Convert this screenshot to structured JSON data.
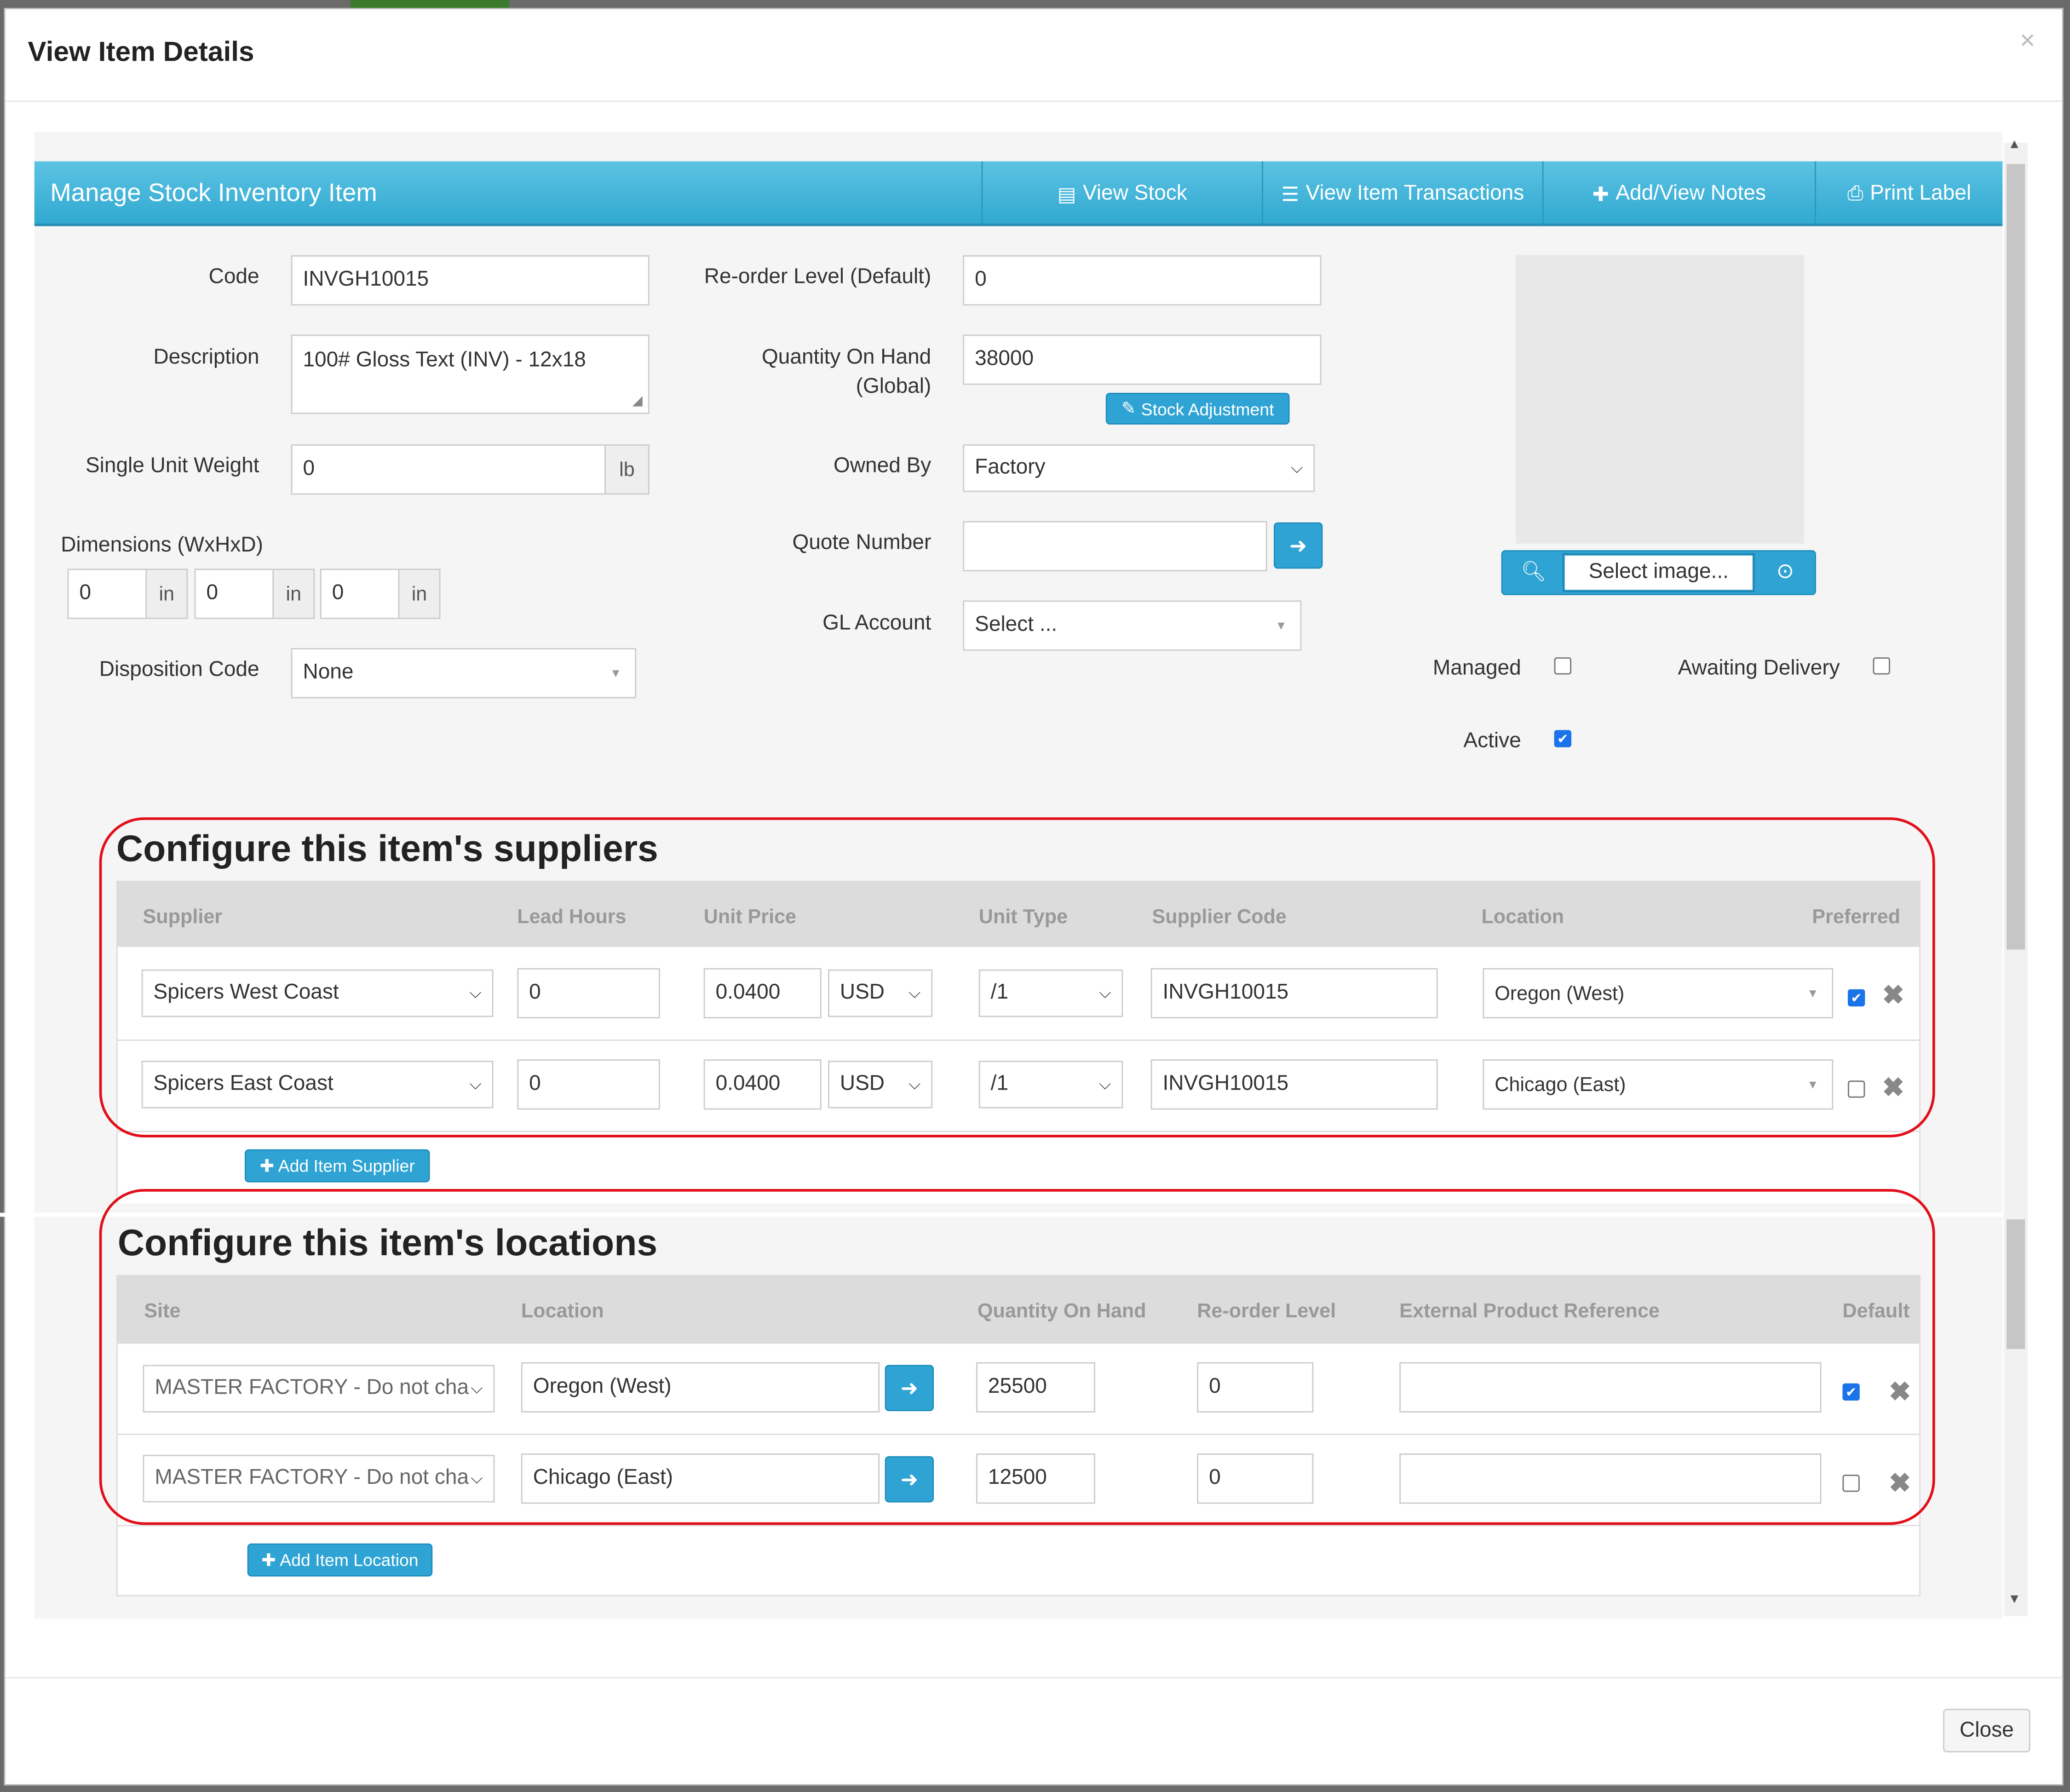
{
  "modal": {
    "title": "View Item Details",
    "close_x": "×",
    "close_button": "Close"
  },
  "panel": {
    "title": "Manage Stock Inventory Item",
    "buttons": [
      {
        "label": "View Stock",
        "icon": "document-icon"
      },
      {
        "label": "View Item Transactions",
        "icon": "list-icon"
      },
      {
        "label": "Add/View Notes",
        "icon": "plus-icon"
      },
      {
        "label": "Print Label",
        "icon": "printer-icon"
      }
    ]
  },
  "form": {
    "code": {
      "label": "Code",
      "value": "INVGH10015"
    },
    "description": {
      "label": "Description",
      "value": "100# Gloss Text (INV) - 12x18"
    },
    "weight": {
      "label": "Single Unit Weight",
      "value": "0",
      "unit": "lb"
    },
    "dimensions": {
      "label": "Dimensions (WxHxD)",
      "w": "0",
      "h": "0",
      "d": "0",
      "unit": "in"
    },
    "disposition": {
      "label": "Disposition Code",
      "value": "None"
    },
    "reorder": {
      "label": "Re-order Level (Default)",
      "value": "0"
    },
    "qoh": {
      "label_line1": "Quantity On Hand",
      "label_line2": "(Global)",
      "value": "38000",
      "adjust_label": "Stock Adjustment"
    },
    "owned_by": {
      "label": "Owned By",
      "value": "Factory"
    },
    "quote_number": {
      "label": "Quote Number",
      "value": ""
    },
    "gl_account": {
      "label": "GL Account",
      "value": "Select ..."
    },
    "image": {
      "select_label": "Select image..."
    },
    "managed": {
      "label": "Managed",
      "checked": false
    },
    "awaiting": {
      "label": "Awaiting Delivery",
      "checked": false
    },
    "active": {
      "label": "Active",
      "checked": true
    }
  },
  "suppliers": {
    "title": "Configure this item's suppliers",
    "headers": [
      "Supplier",
      "Lead Hours",
      "Unit Price",
      "Unit Type",
      "Supplier Code",
      "Location",
      "Preferred"
    ],
    "rows": [
      {
        "supplier": "Spicers West Coast",
        "lead_hours": "0",
        "unit_price": "0.0400",
        "currency": "USD",
        "unit_type": "/1",
        "supplier_code": "INVGH10015",
        "location": "Oregon (West)",
        "preferred": true
      },
      {
        "supplier": "Spicers East Coast",
        "lead_hours": "0",
        "unit_price": "0.0400",
        "currency": "USD",
        "unit_type": "/1",
        "supplier_code": "INVGH10015",
        "location": "Chicago (East)",
        "preferred": false
      }
    ],
    "add_label": "Add Item Supplier"
  },
  "locations": {
    "title": "Configure this item's locations",
    "headers": [
      "Site",
      "Location",
      "Quantity On Hand",
      "Re-order Level",
      "External Product Reference",
      "Default"
    ],
    "rows": [
      {
        "site": "MASTER FACTORY - Do not cha",
        "location": "Oregon (West)",
        "qoh": "25500",
        "reorder": "0",
        "ext_ref": "",
        "default": true
      },
      {
        "site": "MASTER FACTORY - Do not cha",
        "location": "Chicago (East)",
        "qoh": "12500",
        "reorder": "0",
        "ext_ref": "",
        "default": false
      }
    ],
    "add_label": "Add Item Location"
  }
}
